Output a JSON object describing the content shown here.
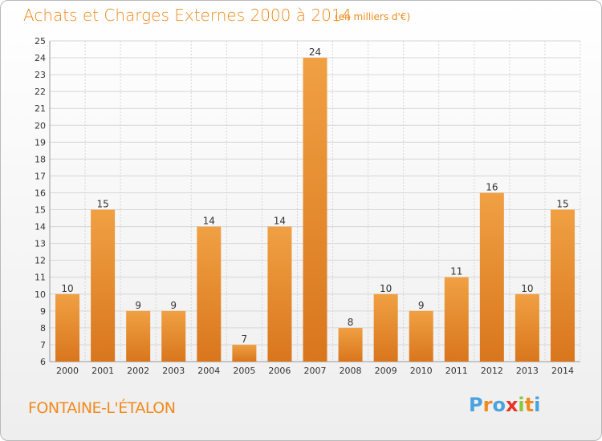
{
  "header": {
    "title": "Achats et Charges Externes 2000 à 2014",
    "subtitle": "(en milliers d'€)"
  },
  "footer": {
    "town": "FONTAINE-L'ÉTALON",
    "logo": {
      "letters": [
        "P",
        "r",
        "o",
        "x",
        "i",
        "t",
        "i"
      ],
      "colors": [
        "#4aa3df",
        "#f08a1c",
        "#4aa3df",
        "#e63329",
        "#8cc63f",
        "#f08a1c",
        "#4aa3df"
      ]
    }
  },
  "chart_data": {
    "type": "bar",
    "title": "Achats et Charges Externes 2000 à 2014",
    "subtitle": "(en milliers d'€)",
    "categories": [
      "2000",
      "2001",
      "2002",
      "2003",
      "2004",
      "2005",
      "2006",
      "2007",
      "2008",
      "2009",
      "2010",
      "2011",
      "2012",
      "2013",
      "2014"
    ],
    "values": [
      10,
      15,
      9,
      9,
      14,
      7,
      14,
      24,
      8,
      10,
      9,
      11,
      16,
      10,
      15
    ],
    "ylim": [
      6,
      25
    ],
    "yticks": [
      6,
      7,
      8,
      9,
      10,
      11,
      12,
      13,
      14,
      15,
      16,
      17,
      18,
      19,
      20,
      21,
      22,
      23,
      24,
      25
    ],
    "grid": true,
    "bar_color": "#f0a043",
    "bar_color_dark": "#d9761d",
    "data_labels": true
  }
}
